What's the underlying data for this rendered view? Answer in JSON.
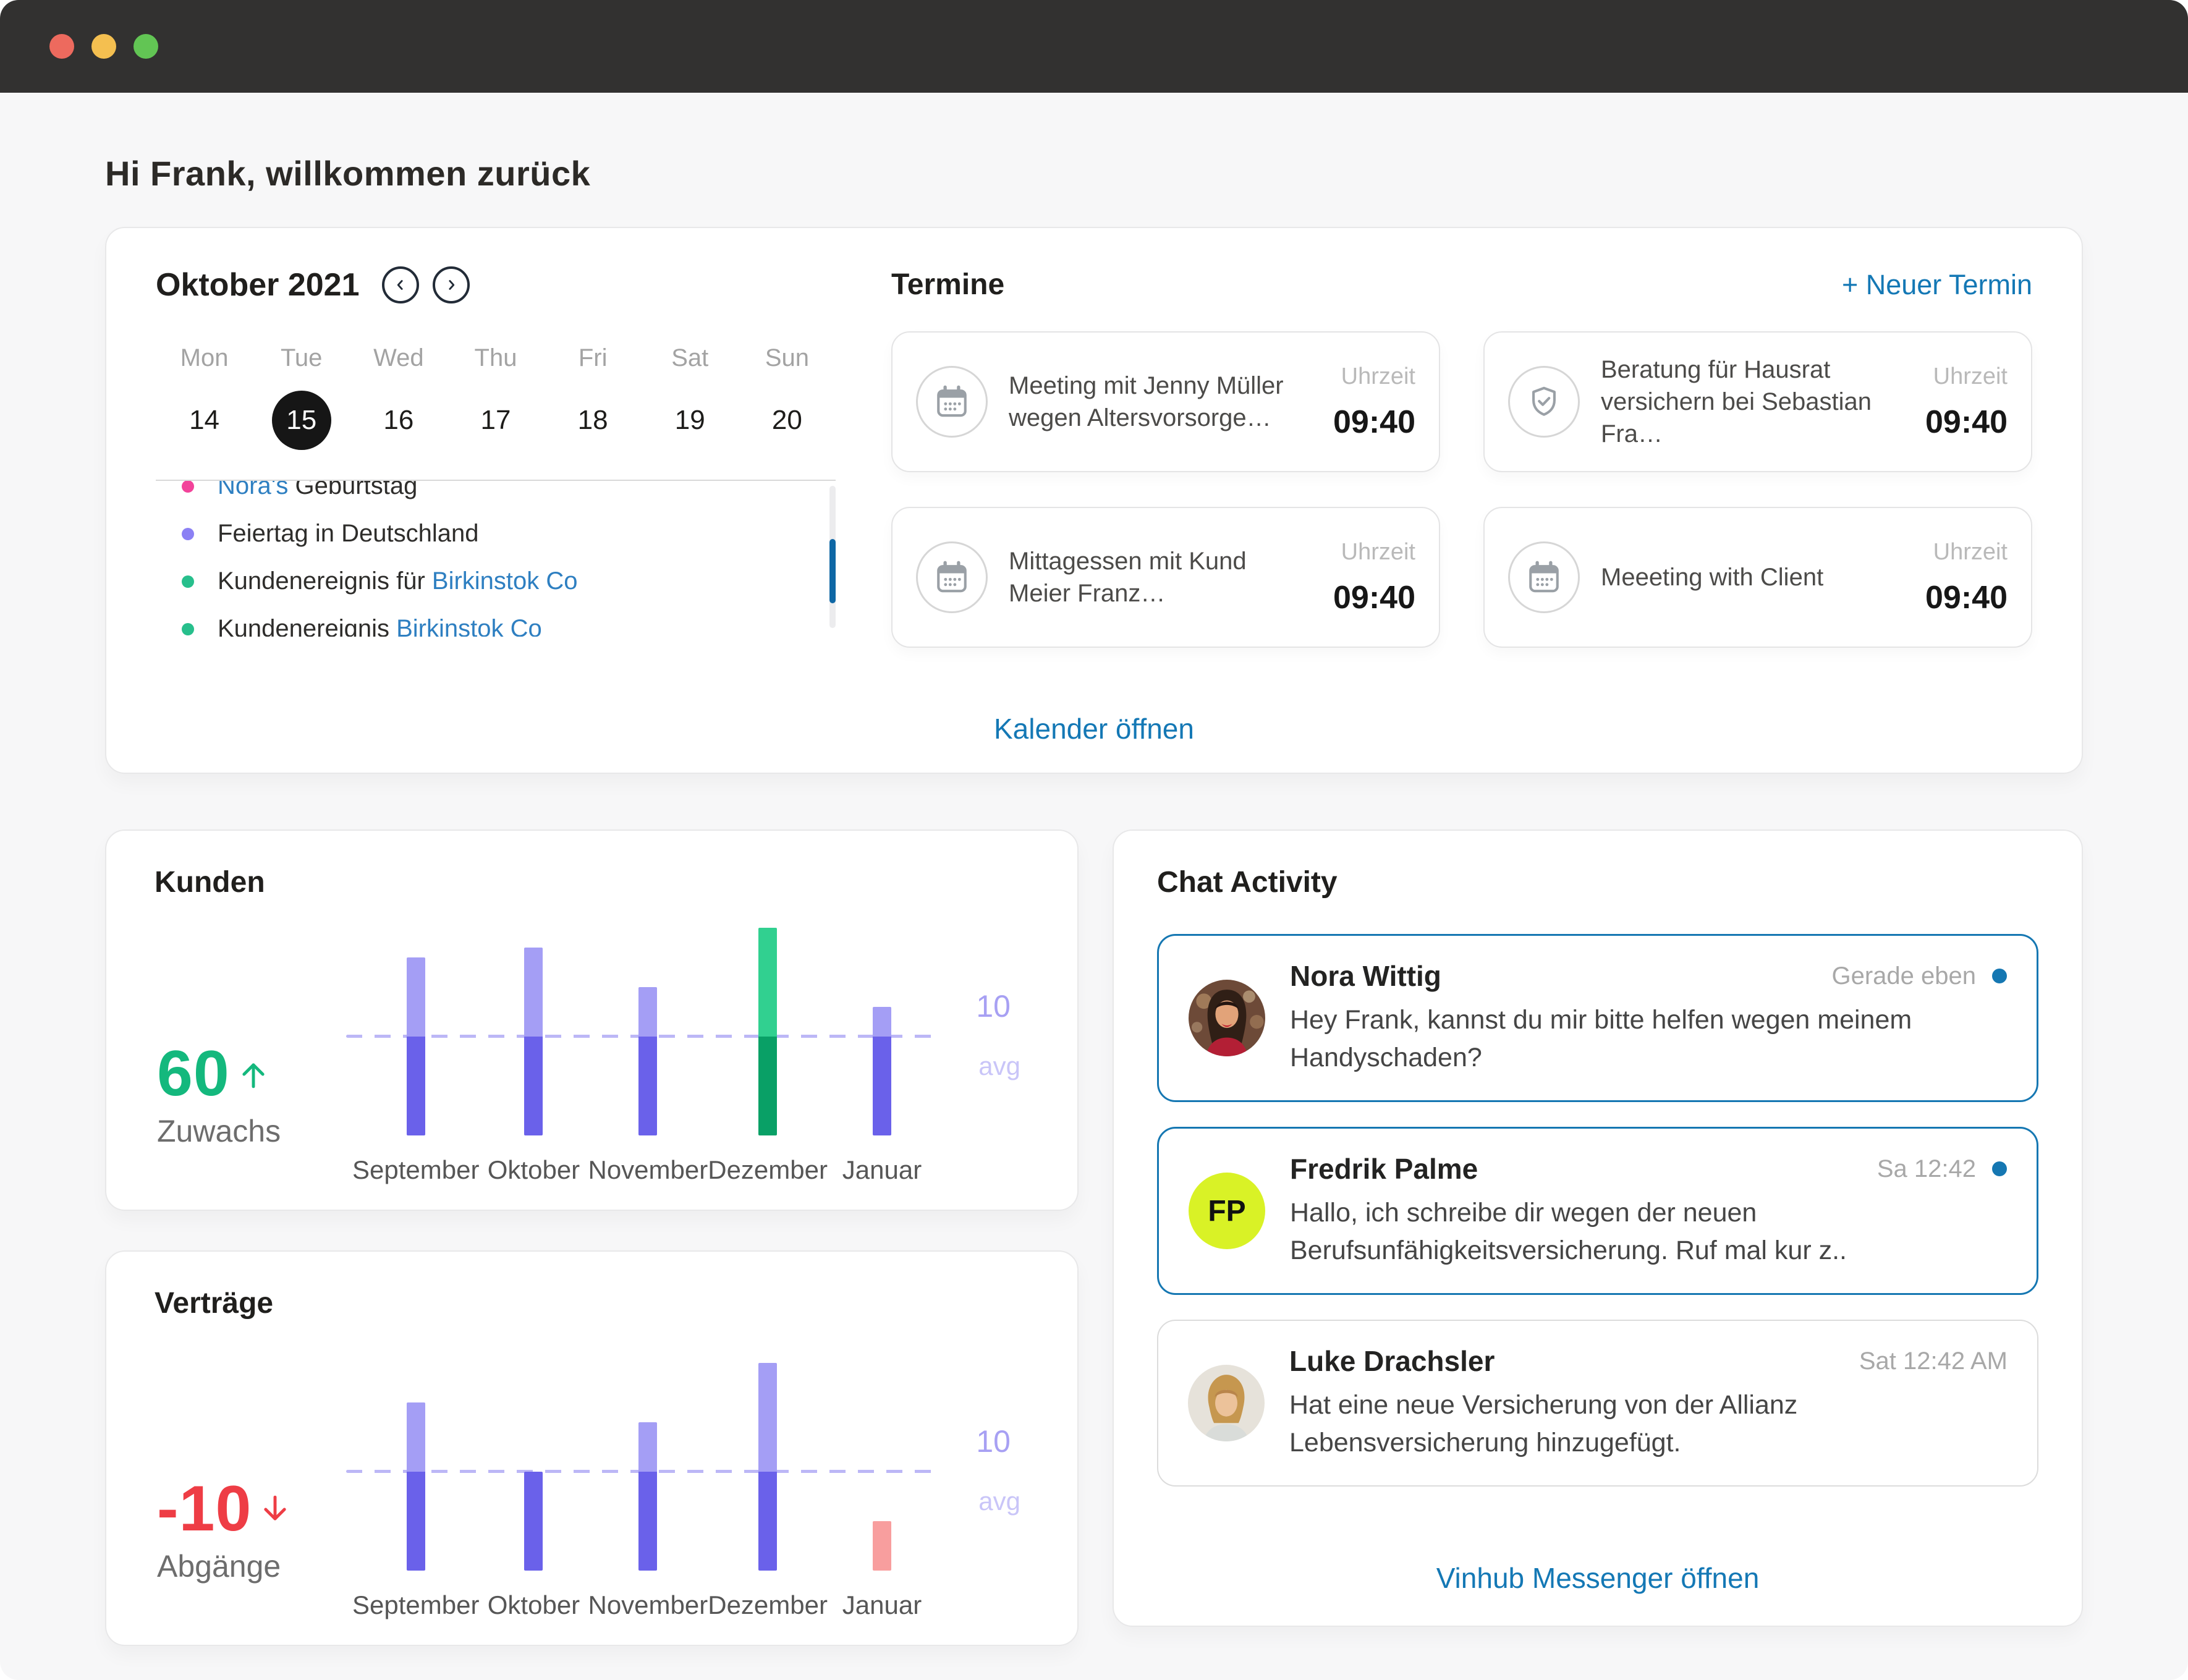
{
  "window": {
    "traffic_lights": [
      {
        "name": "close",
        "color": "#ed6a5e"
      },
      {
        "name": "minimize",
        "color": "#f4bf50"
      },
      {
        "name": "zoom",
        "color": "#62c554"
      }
    ]
  },
  "greeting": "Hi Frank, willkommen zurück",
  "calendar": {
    "month_title": "Oktober 2021",
    "weekdays": [
      "Mon",
      "Tue",
      "Wed",
      "Thu",
      "Fri",
      "Sat",
      "Sun"
    ],
    "dates": [
      "14",
      "15",
      "16",
      "17",
      "18",
      "19",
      "20"
    ],
    "selected_date": "15",
    "events": [
      {
        "dot_color": "#f2439a",
        "segments": [
          {
            "text": "Nora's ",
            "link": true
          },
          {
            "text": "Geburtstag",
            "link": false
          }
        ]
      },
      {
        "dot_color": "#8b80f4",
        "segments": [
          {
            "text": "Feiertag in Deutschland",
            "link": false
          }
        ]
      },
      {
        "dot_color": "#27bf8c",
        "segments": [
          {
            "text": "Kundenereignis für ",
            "link": false
          },
          {
            "text": "Birkinstok Co",
            "link": true
          }
        ]
      },
      {
        "dot_color": "#27bf8c",
        "segments": [
          {
            "text": "Kundenereignis ",
            "link": false
          },
          {
            "text": "Birkinstok Co",
            "link": true
          }
        ]
      }
    ]
  },
  "termine": {
    "title": "Termine",
    "new_link": "+ Neuer Termin",
    "time_label": "Uhrzeit",
    "items": [
      {
        "icon": "calendar-icon",
        "title": "Meeting mit Jenny Müller wegen Altersvorsorge…",
        "time": "09:40"
      },
      {
        "icon": "shield-check-icon",
        "title": "Beratung für Hausrat versichern bei Sebastian Fra…",
        "time": "09:40"
      },
      {
        "icon": "calendar-icon",
        "title": "Mittagessen mit Kund Meier Franz…",
        "time": "09:40"
      },
      {
        "icon": "calendar-icon",
        "title": "Meeeting with Client",
        "time": "09:40"
      }
    ],
    "footer_link": "Kalender öffnen"
  },
  "chart_data": [
    {
      "id": "kunden",
      "type": "bar",
      "title": "Kunden",
      "categories": [
        "September",
        "Oktober",
        "November",
        "Dezember",
        "Januar"
      ],
      "values": [
        18,
        19,
        15,
        21,
        13
      ],
      "avg_line": 10,
      "avg_label": "10",
      "avg_sublabel": "avg",
      "ylim": [
        0,
        22
      ],
      "grid": false,
      "legend": "none",
      "stat": {
        "value": "60",
        "direction": "up",
        "label": "Zuwachs",
        "color": "#14b87d"
      },
      "colors": {
        "below": "#6a61ea",
        "above": "#a49ef5"
      },
      "bar_overrides": {
        "3": {
          "below": "#09a066",
          "above": "#31d090"
        }
      }
    },
    {
      "id": "vertraege",
      "type": "bar",
      "title": "Verträge",
      "categories": [
        "September",
        "Oktober",
        "November",
        "Dezember",
        "Januar"
      ],
      "values": [
        17,
        10,
        15,
        21,
        5
      ],
      "avg_line": 10,
      "avg_label": "10",
      "avg_sublabel": "avg",
      "ylim": [
        0,
        22
      ],
      "grid": false,
      "legend": "none",
      "stat": {
        "value": "-10",
        "direction": "down",
        "label": "Abgänge",
        "color": "#ee3d45"
      },
      "colors": {
        "below": "#6a61ea",
        "above": "#a49ef5"
      },
      "bar_overrides": {
        "4": {
          "below": "#f89e9e",
          "above": "#f89e9e"
        }
      }
    }
  ],
  "chat": {
    "title": "Chat Activity",
    "messages": [
      {
        "name": "Nora Wittig",
        "time": "Gerade eben",
        "unread": true,
        "border": "blue",
        "avatar": {
          "type": "photo",
          "id": "nora-photo"
        },
        "text": "Hey Frank, kannst du mir bitte helfen wegen meinem Handyschaden?"
      },
      {
        "name": "Fredrik Palme",
        "time": "Sa 12:42",
        "unread": true,
        "border": "blue",
        "avatar": {
          "type": "initials",
          "initials": "FP",
          "color": "#d9f226"
        },
        "text": "Hallo, ich schreibe dir wegen der neuen Berufsunfähigkeitsversicherung. Ruf mal kur z.."
      },
      {
        "name": "Luke Drachsler",
        "time": "Sat 12:42 AM",
        "unread": false,
        "border": "gray",
        "avatar": {
          "type": "photo",
          "id": "luke-photo"
        },
        "text": "Hat eine neue Versicherung von der Allianz Lebensversicherung hinzugefügt."
      }
    ],
    "footer_link": "Vinhub Messenger öffnen"
  },
  "colors": {
    "accent_blue": "#1478b5",
    "event_link_blue": "#2e7fc1",
    "scroll_thumb": "#0e67a5",
    "unread_dot": "#1577b2",
    "chat_border_blue": "#1577b2",
    "avg_line": "#bcb7f6",
    "titlebar": "#323130",
    "page_bg": "#f7f7f8",
    "selected_date_bg": "#161616"
  }
}
